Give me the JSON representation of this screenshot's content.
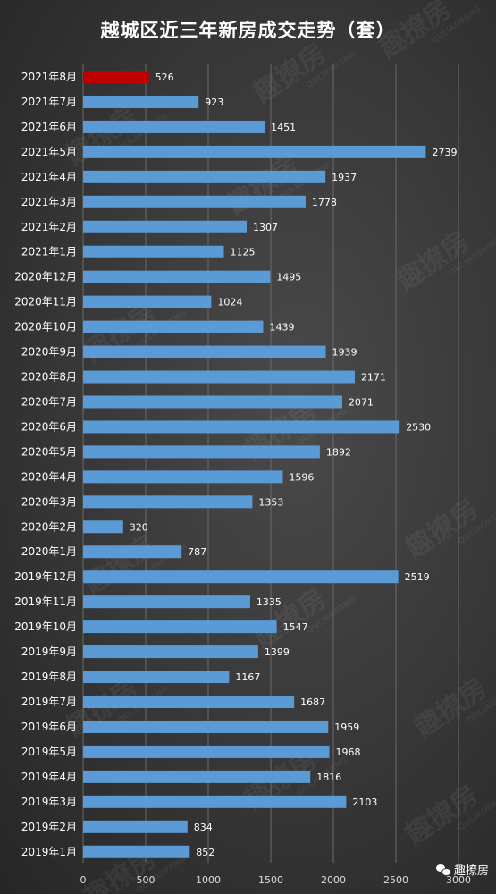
{
  "chart_data": {
    "type": "bar",
    "orientation": "horizontal",
    "title": "越城区近三年新房成交走势（套）",
    "categories": [
      "2021年8月",
      "2021年7月",
      "2021年6月",
      "2021年5月",
      "2021年4月",
      "2021年3月",
      "2021年2月",
      "2021年1月",
      "2020年12月",
      "2020年11月",
      "2020年10月",
      "2020年9月",
      "2020年8月",
      "2020年7月",
      "2020年6月",
      "2020年5月",
      "2020年4月",
      "2020年3月",
      "2020年2月",
      "2020年1月",
      "2019年12月",
      "2019年11月",
      "2019年10月",
      "2019年9月",
      "2019年8月",
      "2019年7月",
      "2019年6月",
      "2019年5月",
      "2019年4月",
      "2019年3月",
      "2019年2月",
      "2019年1月"
    ],
    "values": [
      526,
      923,
      1451,
      2739,
      1937,
      1778,
      1307,
      1125,
      1495,
      1024,
      1439,
      1939,
      2171,
      2071,
      2530,
      1892,
      1596,
      1353,
      320,
      787,
      2519,
      1335,
      1547,
      1399,
      1167,
      1687,
      1959,
      1968,
      1816,
      2103,
      834,
      852
    ],
    "highlight_index": 0,
    "xlim": [
      0,
      3000
    ],
    "xticks": [
      0,
      500,
      1000,
      1500,
      2000,
      2500,
      3000
    ],
    "grid": true,
    "colors": {
      "bar": "#5b9bd5",
      "highlight": "#c00000",
      "grid": "#6a6a6a"
    }
  },
  "watermark": {
    "text": "趣撩房",
    "subtext": "QULIAOFANG"
  },
  "brand": {
    "label": "趣撩房",
    "icon": "wechat-icon"
  }
}
